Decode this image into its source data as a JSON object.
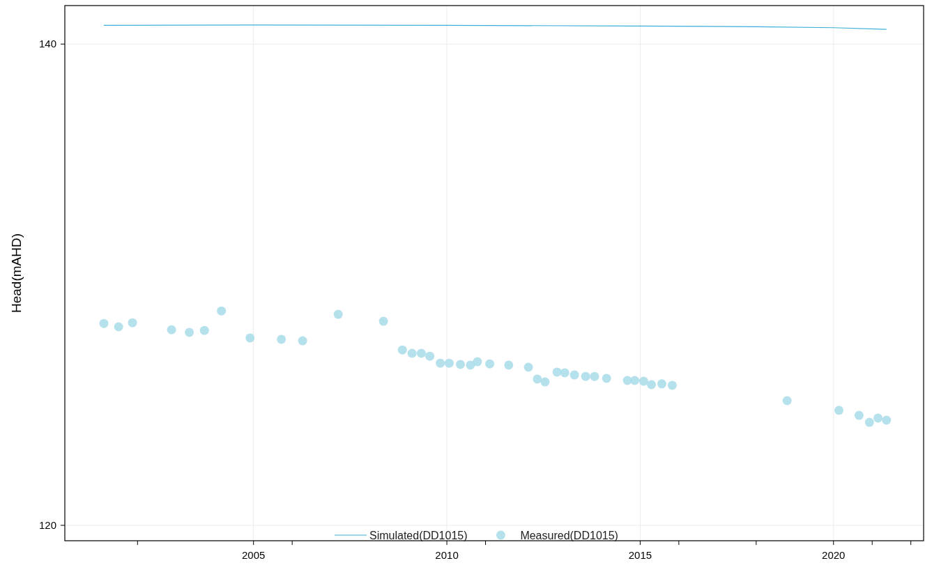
{
  "chart_data": {
    "type": "line",
    "ylabel": "Head(mAHD)",
    "xlim": [
      2000.12,
      2022.33
    ],
    "ylim": [
      119.36,
      141.6
    ],
    "xticks": [
      {
        "value": 2002,
        "label": null
      },
      2005,
      {
        "value": 2006,
        "label": null
      },
      2010,
      {
        "value": 2011,
        "label": null
      },
      2015,
      {
        "value": 2016,
        "label": null
      },
      {
        "value": 2018,
        "label": null
      },
      2020,
      {
        "value": 2021,
        "label": null
      },
      {
        "value": 2022,
        "label": null
      }
    ],
    "yticks": [
      120,
      140
    ],
    "grid": true,
    "legend": "bottom",
    "series": [
      {
        "name": "Simulated(DD1015)",
        "color": "#3aaed8",
        "marker": "none",
        "line_style": "solid",
        "x": [
          2001.13,
          2005,
          2010,
          2015,
          2018,
          2020,
          2021.37
        ],
        "values": [
          140.78,
          140.79,
          140.78,
          140.75,
          140.72,
          140.68,
          140.61
        ]
      },
      {
        "name": "Measured(DD1015)",
        "type": "scatter",
        "color": "#a8dcea",
        "marker": "circle",
        "x": [
          2001.13,
          2001.51,
          2001.87,
          2002.88,
          2003.34,
          2003.73,
          2004.17,
          2004.91,
          2005.72,
          2006.27,
          2007.19,
          2008.36,
          2008.85,
          2009.1,
          2009.34,
          2009.56,
          2009.83,
          2010.06,
          2010.35,
          2010.61,
          2010.79,
          2011.11,
          2011.6,
          2012.11,
          2012.34,
          2012.54,
          2012.85,
          2013.05,
          2013.3,
          2013.59,
          2013.82,
          2014.13,
          2014.67,
          2014.86,
          2015.09,
          2015.29,
          2015.56,
          2015.83,
          2018.8,
          2020.14,
          2020.66,
          2020.93,
          2021.15,
          2021.37
        ],
        "values": [
          128.39,
          128.25,
          128.42,
          128.13,
          128.02,
          128.1,
          128.91,
          127.79,
          127.73,
          127.67,
          128.77,
          128.48,
          127.29,
          127.15,
          127.15,
          127.03,
          126.74,
          126.74,
          126.69,
          126.66,
          126.8,
          126.71,
          126.66,
          126.57,
          126.08,
          125.96,
          126.37,
          126.34,
          126.25,
          126.19,
          126.19,
          126.11,
          126.02,
          126.02,
          125.99,
          125.85,
          125.88,
          125.82,
          125.18,
          124.78,
          124.57,
          124.28,
          124.46,
          124.37
        ]
      }
    ]
  }
}
